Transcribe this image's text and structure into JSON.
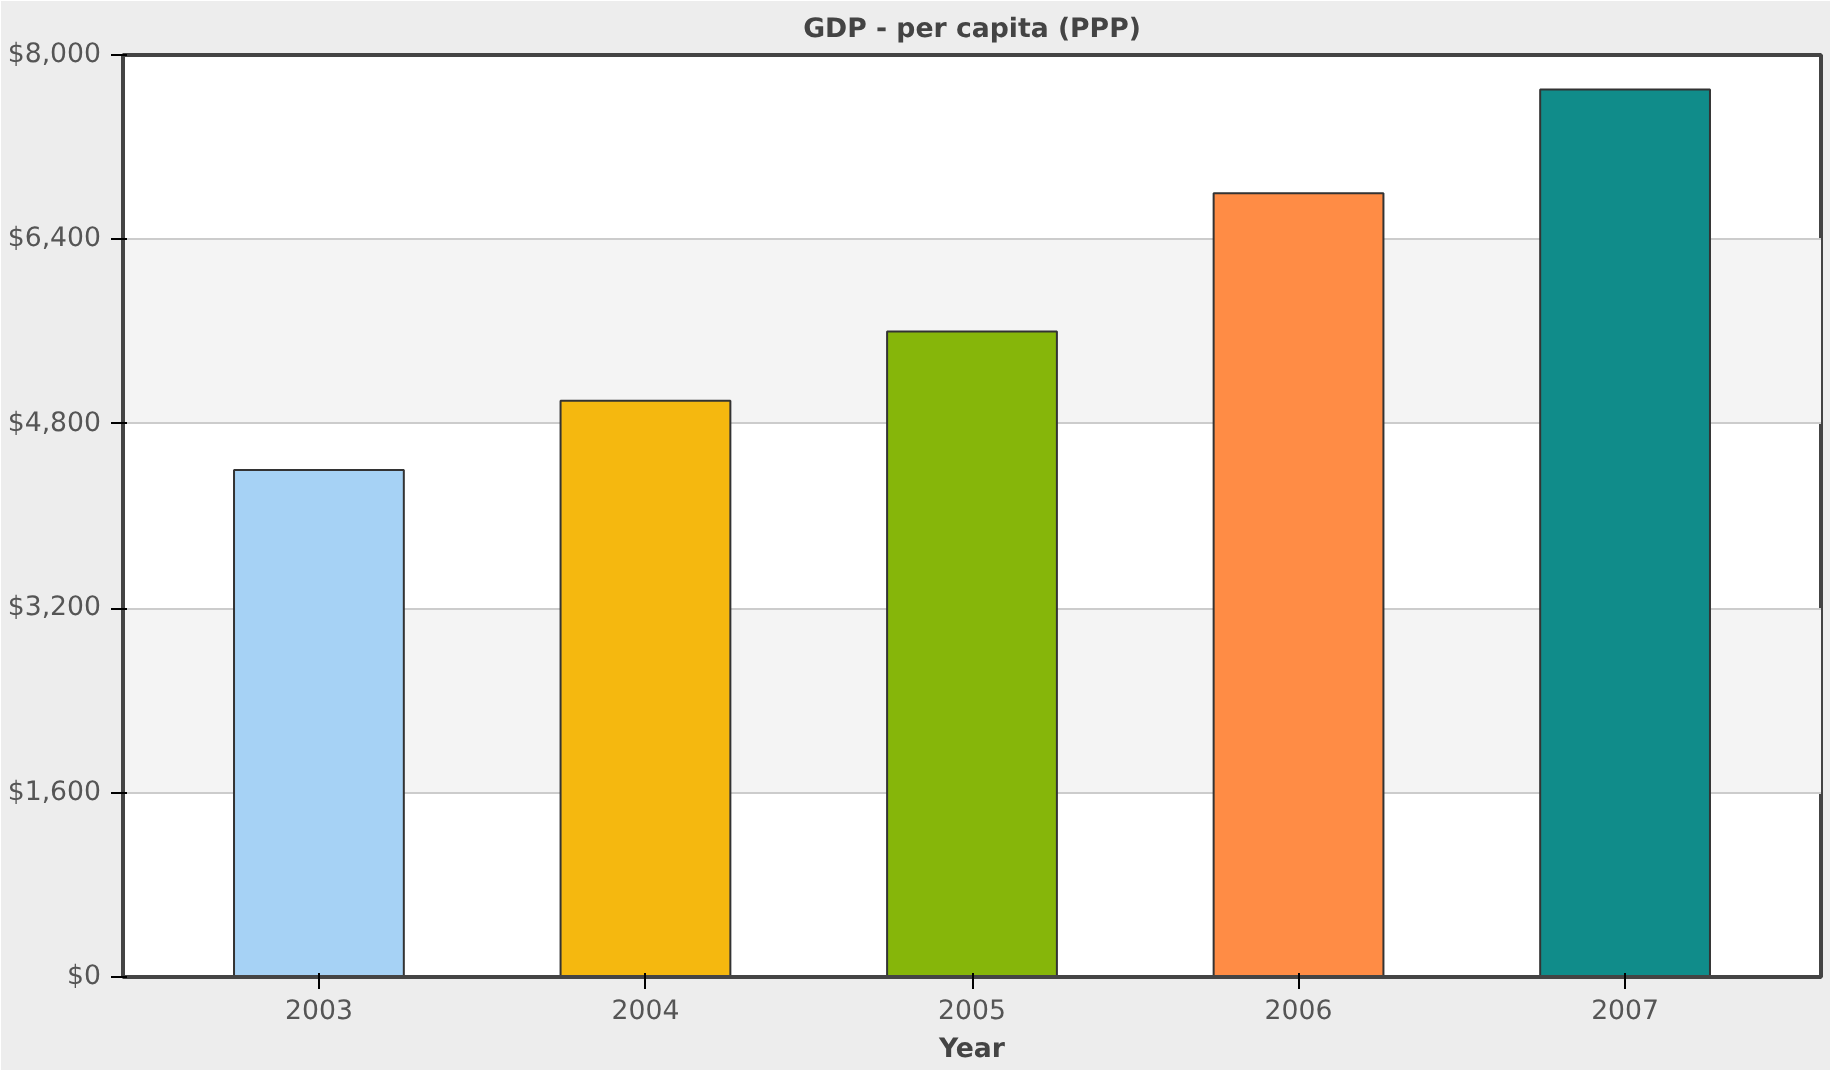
{
  "chart_data": {
    "type": "bar",
    "title": "GDP - per capita (PPP)",
    "xlabel": "Year",
    "categories": [
      "2003",
      "2004",
      "2005",
      "2006",
      "2007"
    ],
    "values": [
      4400,
      5000,
      5600,
      6800,
      7700
    ],
    "colors": [
      "#a6d2f5",
      "#f5b80f",
      "#86b60a",
      "#ff8c45",
      "#108c8a"
    ],
    "ylim": [
      0,
      8000
    ],
    "yticks": [
      {
        "value": 0,
        "label": "$0"
      },
      {
        "value": 1600,
        "label": "$1,600"
      },
      {
        "value": 3200,
        "label": "$3,200"
      },
      {
        "value": 4800,
        "label": "$4,800"
      },
      {
        "value": 6400,
        "label": "$6,400"
      },
      {
        "value": 8000,
        "label": "$8,000"
      }
    ],
    "grid": "y"
  }
}
